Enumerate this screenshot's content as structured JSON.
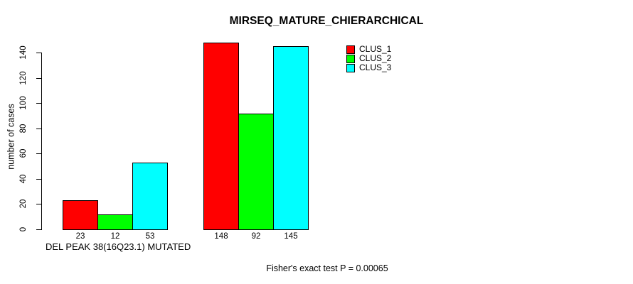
{
  "chart_data": {
    "type": "bar",
    "title": "MIRSEQ_MATURE_CHIERARCHICAL",
    "ylabel": "number of cases",
    "xlabel": "DEL PEAK 38(16Q23.1) MUTATED",
    "yticks": [
      0,
      20,
      40,
      60,
      80,
      100,
      120,
      140
    ],
    "ylim": [
      0,
      148
    ],
    "grid": false,
    "legend_position": "top-right-inside",
    "bar_value_labels_shown": true,
    "series": [
      {
        "name": "CLUS_1",
        "color": "#ff0000",
        "values": [
          23,
          148
        ]
      },
      {
        "name": "CLUS_2",
        "color": "#00ff00",
        "values": [
          12,
          92
        ]
      },
      {
        "name": "CLUS_3",
        "color": "#00ffff",
        "values": [
          53,
          145
        ]
      }
    ]
  },
  "footer": {
    "stat_text": "Fisher's exact test P = 0.00065"
  }
}
